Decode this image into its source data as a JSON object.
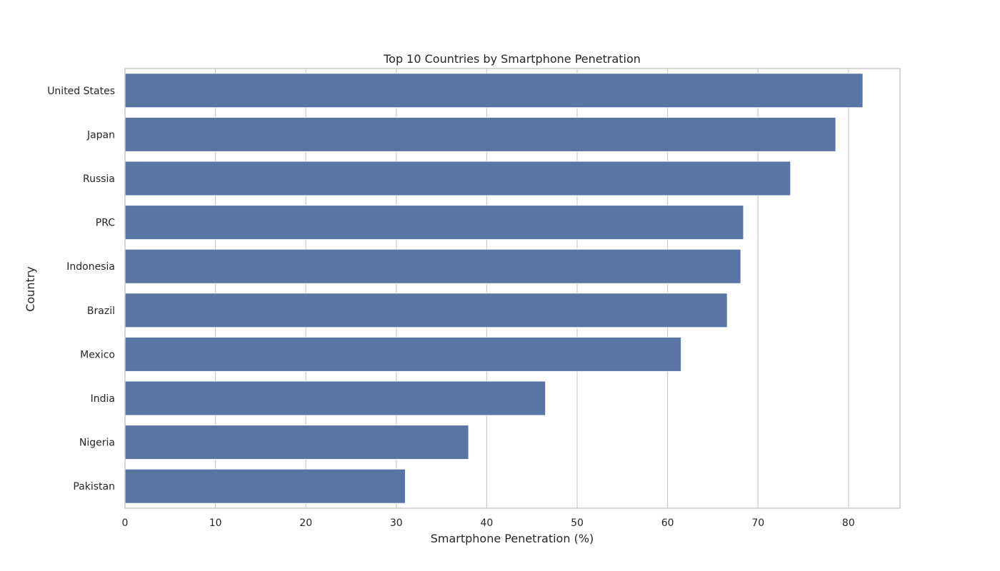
{
  "chart_data": {
    "type": "bar",
    "orientation": "horizontal",
    "title": "Top 10 Countries by Smartphone Penetration",
    "xlabel": "Smartphone Penetration (%)",
    "ylabel": "Country",
    "categories": [
      "United States",
      "Japan",
      "Russia",
      "PRC",
      "Indonesia",
      "Brazil",
      "Mexico",
      "India",
      "Nigeria",
      "Pakistan"
    ],
    "values": [
      81.6,
      78.6,
      73.6,
      68.4,
      68.1,
      66.6,
      61.5,
      46.5,
      38.0,
      31.0
    ],
    "xlim": [
      0,
      85.7
    ],
    "xticks": [
      "0",
      "10",
      "20",
      "30",
      "40",
      "50",
      "60",
      "70",
      "80"
    ],
    "grid": true,
    "bar_color": "#5975a4"
  }
}
